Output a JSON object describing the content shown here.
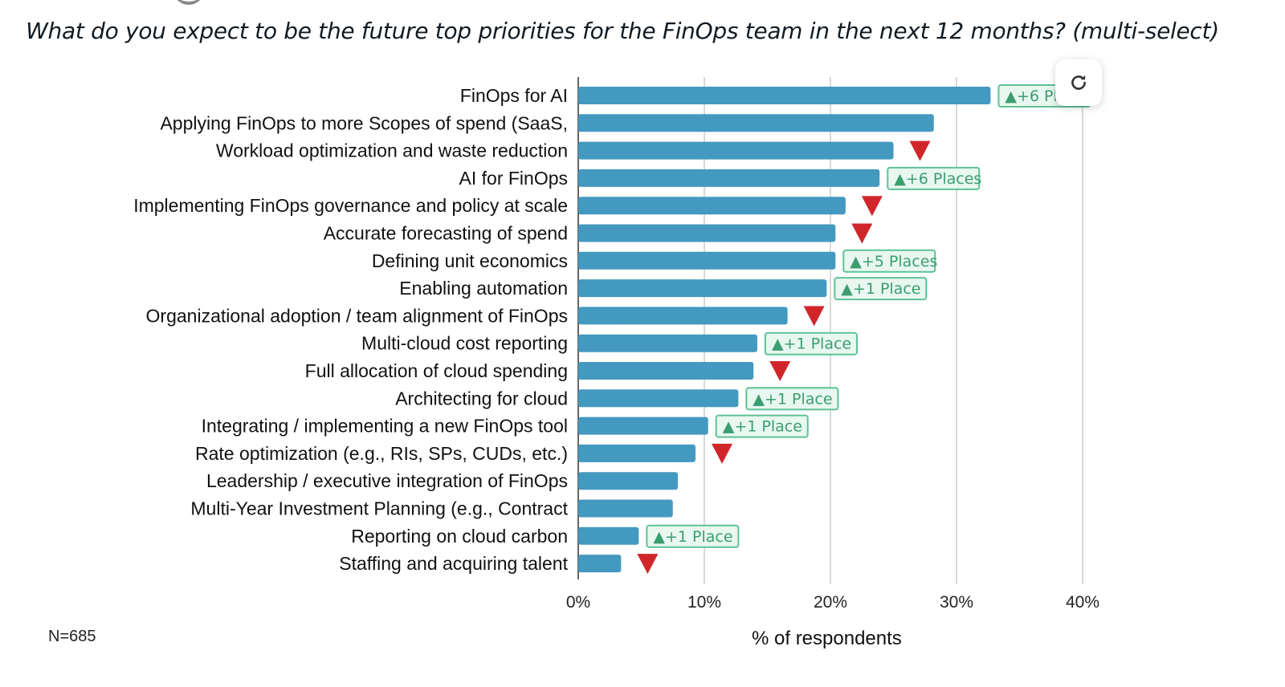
{
  "chart_data": {
    "type": "bar",
    "orientation": "horizontal",
    "title": "What do you expect to be the future top priorities for the FinOps team in the next 12 months? (multi-select)",
    "xlabel": "% of respondents",
    "ylabel": "",
    "xlim": [
      0,
      40
    ],
    "xticks": [
      "0%",
      "10%",
      "20%",
      "30%",
      "40%"
    ],
    "grid": true,
    "note": "N=685",
    "categories": [
      "FinOps for AI",
      "Applying FinOps to more Scopes of spend (SaaS,",
      "Workload optimization and waste reduction",
      "AI for FinOps",
      "Implementing FinOps governance and policy at scale",
      "Accurate forecasting of spend",
      "Defining unit economics",
      "Enabling automation",
      "Organizational adoption / team alignment of FinOps",
      "Multi-cloud cost reporting",
      "Full allocation of cloud spending",
      "Architecting for cloud",
      "Integrating / implementing a new FinOps tool",
      "Rate optimization (e.g., RIs, SPs, CUDs, etc.)",
      "Leadership / executive integration of FinOps",
      "Multi-Year Investment Planning (e.g., Contract",
      "Reporting on cloud carbon",
      "Staffing and acquiring talent"
    ],
    "values": [
      32.7,
      28.2,
      25.0,
      23.9,
      21.2,
      20.4,
      20.4,
      19.7,
      16.6,
      14.2,
      13.9,
      12.7,
      10.3,
      9.3,
      7.9,
      7.5,
      4.8,
      3.4
    ],
    "changes": [
      {
        "dir": "up",
        "label": "▲+6 Places"
      },
      null,
      {
        "dir": "down"
      },
      {
        "dir": "up",
        "label": "▲+6 Places"
      },
      {
        "dir": "down"
      },
      {
        "dir": "down"
      },
      {
        "dir": "up",
        "label": "▲+5 Places"
      },
      {
        "dir": "up",
        "label": "▲+1 Place"
      },
      {
        "dir": "down"
      },
      {
        "dir": "up",
        "label": "▲+1 Place"
      },
      {
        "dir": "down"
      },
      {
        "dir": "up",
        "label": "▲+1 Place"
      },
      {
        "dir": "up",
        "label": "▲+1 Place"
      },
      {
        "dir": "down"
      },
      null,
      null,
      {
        "dir": "up",
        "label": "▲+1 Place"
      },
      {
        "dir": "down"
      }
    ],
    "colors": {
      "bar": "#4499c0",
      "up": "#3a9e6e",
      "up_bg": "#e8f7f0",
      "down": "#d0262a",
      "grid": "#cccccc"
    }
  },
  "controls": {
    "refresh_icon": "refresh-icon"
  }
}
